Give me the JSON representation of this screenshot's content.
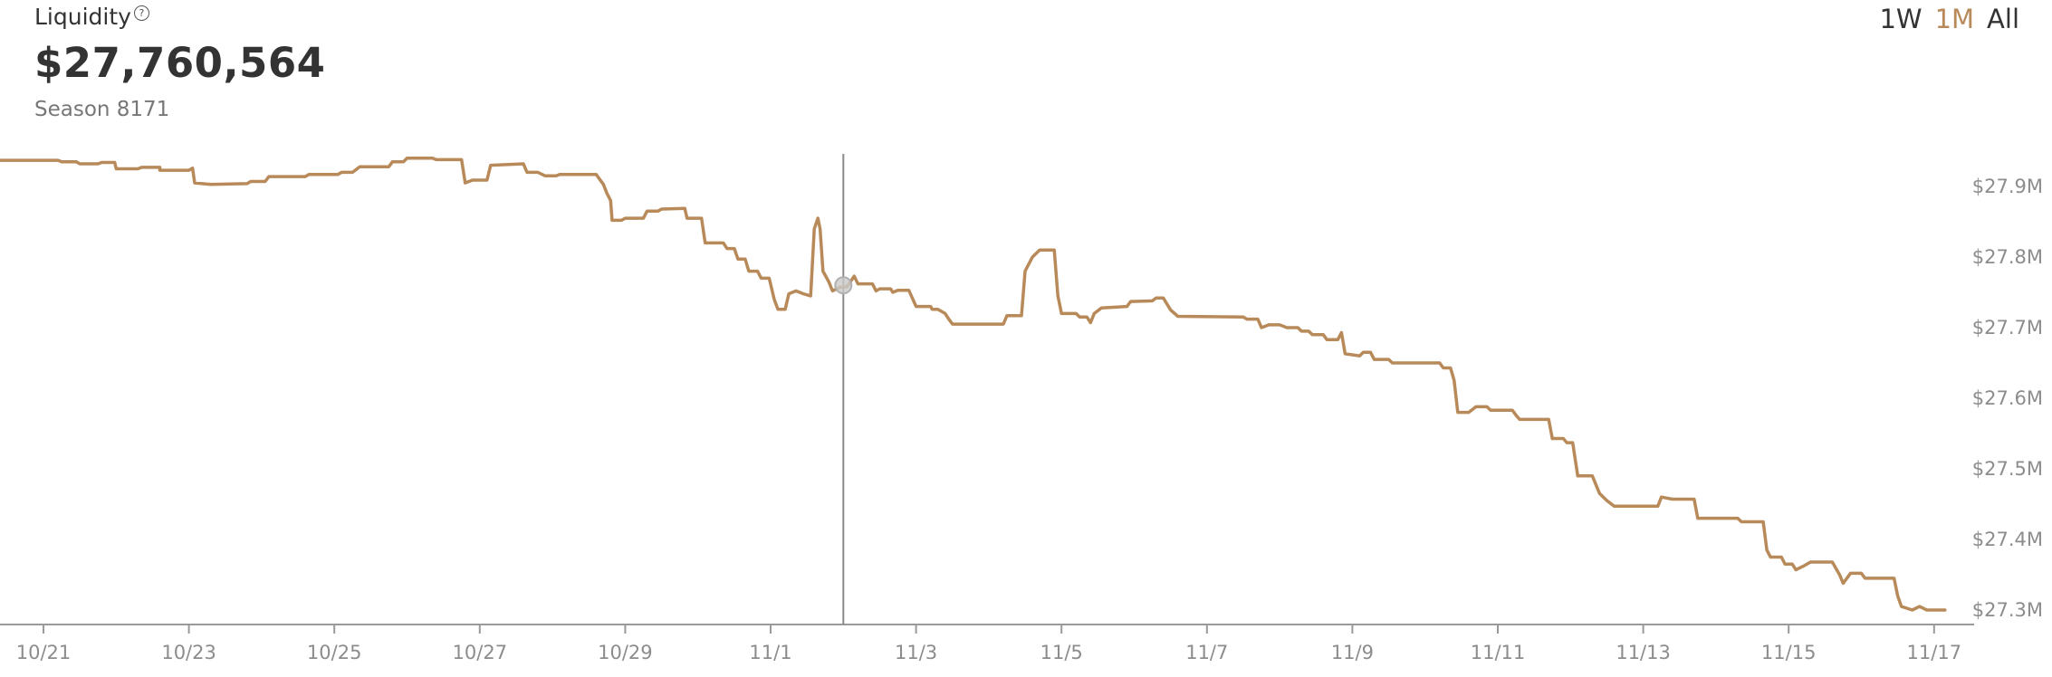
{
  "metric": {
    "label": "Liquidity",
    "help_icon": "question-circle-icon",
    "value": "$27,760,564",
    "season": "Season 8171"
  },
  "range_tabs": [
    {
      "label": "1W",
      "active": false
    },
    {
      "label": "1M",
      "active": true
    },
    {
      "label": "All",
      "active": false
    }
  ],
  "colors": {
    "line": "#b88a5a",
    "axis": "#9a9a9a",
    "crosshair": "#8a8a8a",
    "active_tab": "#b88a5a",
    "tick_text": "#8c8c8c"
  },
  "chart_data": {
    "type": "line",
    "title": "Liquidity",
    "xlabel": "",
    "ylabel": "",
    "x_ticks": [
      "10/21",
      "10/23",
      "10/25",
      "10/27",
      "10/29",
      "11/1",
      "11/3",
      "11/5",
      "11/7",
      "11/9",
      "11/11",
      "11/13",
      "11/15",
      "11/17"
    ],
    "y_ticks": [
      "$27.9M",
      "$27.8M",
      "$27.7M",
      "$27.6M",
      "$27.5M",
      "$27.4M",
      "$27.3M"
    ],
    "y_tick_values": [
      27.9,
      27.8,
      27.7,
      27.6,
      27.5,
      27.4,
      27.3
    ],
    "xlim": [
      0,
      27.1
    ],
    "ylim": [
      27.28,
      27.95
    ],
    "x_unit": "days after 10/20 (tick 10/21 = 0.6, 2 days per tick)",
    "hover": {
      "x": 11.6,
      "y": 27.76,
      "season": "Season 8171",
      "value": "$27,760,564"
    },
    "series": [
      {
        "name": "Liquidity",
        "points": [
          [
            0.0,
            27.937
          ],
          [
            0.8,
            27.937
          ],
          [
            0.85,
            27.935
          ],
          [
            1.05,
            27.935
          ],
          [
            1.1,
            27.932
          ],
          [
            1.35,
            27.932
          ],
          [
            1.4,
            27.934
          ],
          [
            1.58,
            27.934
          ],
          [
            1.6,
            27.925
          ],
          [
            1.9,
            27.925
          ],
          [
            1.95,
            27.927
          ],
          [
            2.2,
            27.927
          ],
          [
            2.2,
            27.923
          ],
          [
            2.6,
            27.923
          ],
          [
            2.65,
            27.926
          ],
          [
            2.68,
            27.905
          ],
          [
            2.9,
            27.903
          ],
          [
            3.4,
            27.904
          ],
          [
            3.45,
            27.907
          ],
          [
            3.65,
            27.907
          ],
          [
            3.7,
            27.914
          ],
          [
            4.2,
            27.914
          ],
          [
            4.25,
            27.917
          ],
          [
            4.65,
            27.917
          ],
          [
            4.7,
            27.92
          ],
          [
            4.85,
            27.92
          ],
          [
            4.95,
            27.928
          ],
          [
            5.35,
            27.928
          ],
          [
            5.4,
            27.935
          ],
          [
            5.55,
            27.935
          ],
          [
            5.6,
            27.94
          ],
          [
            5.95,
            27.94
          ],
          [
            6.0,
            27.938
          ],
          [
            6.35,
            27.938
          ],
          [
            6.4,
            27.905
          ],
          [
            6.5,
            27.909
          ],
          [
            6.7,
            27.909
          ],
          [
            6.75,
            27.93
          ],
          [
            7.2,
            27.932
          ],
          [
            7.25,
            27.92
          ],
          [
            7.4,
            27.92
          ],
          [
            7.5,
            27.915
          ],
          [
            7.65,
            27.915
          ],
          [
            7.7,
            27.917
          ],
          [
            8.2,
            27.917
          ],
          [
            8.3,
            27.903
          ],
          [
            8.35,
            27.89
          ],
          [
            8.4,
            27.88
          ],
          [
            8.42,
            27.852
          ],
          [
            8.55,
            27.852
          ],
          [
            8.6,
            27.855
          ],
          [
            8.85,
            27.855
          ],
          [
            8.9,
            27.865
          ],
          [
            9.05,
            27.865
          ],
          [
            9.1,
            27.868
          ],
          [
            9.42,
            27.869
          ],
          [
            9.45,
            27.855
          ],
          [
            9.65,
            27.855
          ],
          [
            9.7,
            27.82
          ],
          [
            9.95,
            27.82
          ],
          [
            10.0,
            27.812
          ],
          [
            10.1,
            27.812
          ],
          [
            10.15,
            27.797
          ],
          [
            10.25,
            27.797
          ],
          [
            10.3,
            27.78
          ],
          [
            10.42,
            27.78
          ],
          [
            10.47,
            27.77
          ],
          [
            10.58,
            27.77
          ],
          [
            10.65,
            27.74
          ],
          [
            10.7,
            27.726
          ],
          [
            10.8,
            27.726
          ],
          [
            10.85,
            27.748
          ],
          [
            10.95,
            27.752
          ],
          [
            11.05,
            27.748
          ],
          [
            11.15,
            27.745
          ],
          [
            11.2,
            27.84
          ],
          [
            11.25,
            27.855
          ],
          [
            11.28,
            27.84
          ],
          [
            11.32,
            27.78
          ],
          [
            11.4,
            27.765
          ],
          [
            11.45,
            27.752
          ],
          [
            11.55,
            27.757
          ],
          [
            11.65,
            27.758
          ],
          [
            11.75,
            27.773
          ],
          [
            11.8,
            27.762
          ],
          [
            12.0,
            27.762
          ],
          [
            12.05,
            27.752
          ],
          [
            12.1,
            27.755
          ],
          [
            12.25,
            27.755
          ],
          [
            12.28,
            27.75
          ],
          [
            12.35,
            27.753
          ],
          [
            12.5,
            27.753
          ],
          [
            12.6,
            27.73
          ],
          [
            12.8,
            27.73
          ],
          [
            12.82,
            27.726
          ],
          [
            12.9,
            27.726
          ],
          [
            13.0,
            27.72
          ],
          [
            13.05,
            27.712
          ],
          [
            13.1,
            27.705
          ],
          [
            13.2,
            27.705
          ],
          [
            13.8,
            27.705
          ],
          [
            13.85,
            27.717
          ],
          [
            14.05,
            27.717
          ],
          [
            14.1,
            27.78
          ],
          [
            14.2,
            27.8
          ],
          [
            14.3,
            27.81
          ],
          [
            14.5,
            27.81
          ],
          [
            14.55,
            27.745
          ],
          [
            14.6,
            27.72
          ],
          [
            14.8,
            27.72
          ],
          [
            14.85,
            27.715
          ],
          [
            14.95,
            27.715
          ],
          [
            15.0,
            27.707
          ],
          [
            15.05,
            27.72
          ],
          [
            15.15,
            27.728
          ],
          [
            15.5,
            27.73
          ],
          [
            15.55,
            27.737
          ],
          [
            15.85,
            27.738
          ],
          [
            15.9,
            27.742
          ],
          [
            16.0,
            27.742
          ],
          [
            16.1,
            27.725
          ],
          [
            16.2,
            27.716
          ],
          [
            17.1,
            27.715
          ],
          [
            17.15,
            27.712
          ],
          [
            17.3,
            27.712
          ],
          [
            17.35,
            27.7
          ],
          [
            17.45,
            27.704
          ],
          [
            17.6,
            27.704
          ],
          [
            17.7,
            27.7
          ],
          [
            17.85,
            27.7
          ],
          [
            17.9,
            27.695
          ],
          [
            18.0,
            27.695
          ],
          [
            18.05,
            27.69
          ],
          [
            18.2,
            27.69
          ],
          [
            18.25,
            27.683
          ],
          [
            18.4,
            27.683
          ],
          [
            18.45,
            27.693
          ],
          [
            18.5,
            27.663
          ],
          [
            18.7,
            27.66
          ],
          [
            18.75,
            27.665
          ],
          [
            18.85,
            27.665
          ],
          [
            18.9,
            27.655
          ],
          [
            19.1,
            27.655
          ],
          [
            19.15,
            27.65
          ],
          [
            19.8,
            27.65
          ],
          [
            19.85,
            27.643
          ],
          [
            19.95,
            27.643
          ],
          [
            20.0,
            27.625
          ],
          [
            20.05,
            27.58
          ],
          [
            20.2,
            27.58
          ],
          [
            20.3,
            27.588
          ],
          [
            20.45,
            27.588
          ],
          [
            20.5,
            27.583
          ],
          [
            20.8,
            27.583
          ],
          [
            20.85,
            27.576
          ],
          [
            20.9,
            27.57
          ],
          [
            21.3,
            27.57
          ],
          [
            21.35,
            27.543
          ],
          [
            21.5,
            27.543
          ],
          [
            21.55,
            27.537
          ],
          [
            21.63,
            27.537
          ],
          [
            21.7,
            27.49
          ],
          [
            21.9,
            27.49
          ],
          [
            22.0,
            27.465
          ],
          [
            22.1,
            27.455
          ],
          [
            22.2,
            27.447
          ],
          [
            22.8,
            27.447
          ],
          [
            22.85,
            27.46
          ],
          [
            23.0,
            27.457
          ],
          [
            23.3,
            27.457
          ],
          [
            23.35,
            27.43
          ],
          [
            23.9,
            27.43
          ],
          [
            23.95,
            27.425
          ],
          [
            24.25,
            27.425
          ],
          [
            24.3,
            27.385
          ],
          [
            24.35,
            27.375
          ],
          [
            24.5,
            27.375
          ],
          [
            24.55,
            27.365
          ],
          [
            24.65,
            27.365
          ],
          [
            24.7,
            27.357
          ],
          [
            24.8,
            27.362
          ],
          [
            24.9,
            27.368
          ],
          [
            25.2,
            27.368
          ],
          [
            25.3,
            27.35
          ],
          [
            25.35,
            27.338
          ],
          [
            25.45,
            27.352
          ],
          [
            25.6,
            27.352
          ],
          [
            25.65,
            27.345
          ],
          [
            26.05,
            27.345
          ],
          [
            26.1,
            27.32
          ],
          [
            26.15,
            27.305
          ],
          [
            26.3,
            27.3
          ],
          [
            26.4,
            27.305
          ],
          [
            26.5,
            27.3
          ],
          [
            26.75,
            27.3
          ]
        ]
      }
    ]
  }
}
